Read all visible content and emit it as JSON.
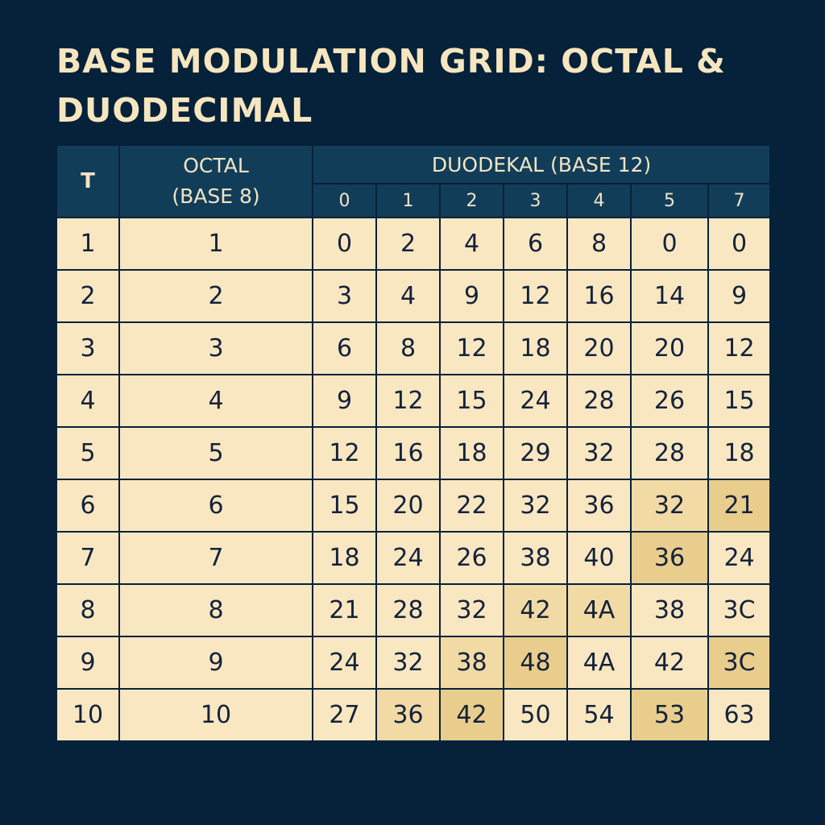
{
  "title": "BASE MODULATION GRID: OCTAL & DUODECIMAL",
  "header": {
    "t_label": "T",
    "octal_line1": "OCTAL",
    "octal_line2": "(BASE 8)",
    "group_label": "DUODEKAL (BASE 12)",
    "columns": [
      "0",
      "1",
      "2",
      "3",
      "4",
      "5",
      "7"
    ]
  },
  "rows": [
    {
      "t": "1",
      "octal": "1",
      "values": [
        "0",
        "2",
        "4",
        "6",
        "8",
        "0",
        "0"
      ]
    },
    {
      "t": "2",
      "octal": "2",
      "values": [
        "3",
        "4",
        "9",
        "12",
        "16",
        "14",
        "9"
      ]
    },
    {
      "t": "3",
      "octal": "3",
      "values": [
        "6",
        "8",
        "12",
        "18",
        "20",
        "20",
        "12"
      ]
    },
    {
      "t": "4",
      "octal": "4",
      "values": [
        "9",
        "12",
        "15",
        "24",
        "28",
        "26",
        "15"
      ]
    },
    {
      "t": "5",
      "octal": "5",
      "values": [
        "12",
        "16",
        "18",
        "29",
        "32",
        "28",
        "18"
      ]
    },
    {
      "t": "6",
      "octal": "6",
      "values": [
        "15",
        "20",
        "22",
        "32",
        "36",
        "32",
        "21"
      ]
    },
    {
      "t": "7",
      "octal": "7",
      "values": [
        "18",
        "24",
        "26",
        "38",
        "40",
        "36",
        "24"
      ]
    },
    {
      "t": "8",
      "octal": "8",
      "values": [
        "21",
        "28",
        "32",
        "42",
        "4A",
        "38",
        "3C"
      ]
    },
    {
      "t": "9",
      "octal": "9",
      "values": [
        "24",
        "32",
        "38",
        "48",
        "4A",
        "42",
        "3C"
      ]
    },
    {
      "t": "10",
      "octal": "10",
      "values": [
        "27",
        "36",
        "42",
        "50",
        "54",
        "53",
        "63"
      ]
    }
  ],
  "colors": {
    "background": "#06213a",
    "header": "#123d59",
    "cell": "#f9e7c1",
    "highlight_light": "#f1daa4",
    "highlight_strong": "#e9cd8c",
    "text_dark": "#14223b",
    "title_text": "#f6e6bf"
  }
}
